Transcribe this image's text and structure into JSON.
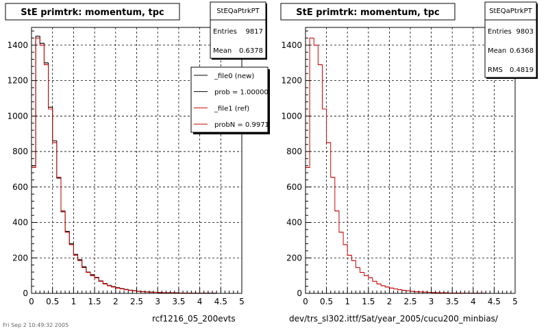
{
  "chart_data": [
    {
      "type": "histogram",
      "title": "StE primtrk: momentum, tpc",
      "xlim": [
        0,
        5
      ],
      "ylim": [
        0,
        1500
      ],
      "x_ticks": [
        "0",
        "0.5",
        "1",
        "1.5",
        "2",
        "2.5",
        "3",
        "3.5",
        "4",
        "4.5",
        "5"
      ],
      "y_ticks": [
        "0",
        "200",
        "400",
        "600",
        "800",
        "1000",
        "1200",
        "1400"
      ],
      "grid": true,
      "bin_width": 0.1,
      "stats": {
        "name": "StEQaPtrkPT",
        "rows": [
          {
            "label": "Entries",
            "value": "9817"
          },
          {
            "label": "Mean",
            "value": "0.6378"
          }
        ]
      },
      "legend": {
        "entries": [
          {
            "label": "_file0 (new)",
            "color": "#000000"
          },
          {
            "label": "prob = 1.000000",
            "color": "#000000"
          },
          {
            "label": "_file1 (ref)",
            "color": "#cc0000"
          },
          {
            "label": "probN = 0.997197",
            "color": "#cc0000"
          }
        ]
      },
      "caption": "rcf1216_05_200evts",
      "series": [
        {
          "name": "_file0 (new)",
          "color": "#000000",
          "values": [
            720,
            1450,
            1410,
            1300,
            1050,
            860,
            650,
            460,
            350,
            280,
            220,
            190,
            150,
            120,
            105,
            90,
            70,
            55,
            45,
            38,
            32,
            27,
            22,
            18,
            15,
            12,
            10,
            8,
            7,
            6,
            5,
            4,
            4,
            3,
            3,
            2,
            2,
            2,
            1,
            1,
            1,
            1,
            1,
            1,
            0,
            0,
            0,
            0,
            0,
            0
          ]
        },
        {
          "name": "_file1 (ref)",
          "color": "#cc0000",
          "values": [
            710,
            1440,
            1400,
            1290,
            1040,
            850,
            655,
            465,
            345,
            275,
            215,
            185,
            145,
            118,
            100,
            88,
            68,
            53,
            43,
            36,
            30,
            25,
            21,
            17,
            14,
            11,
            9,
            8,
            7,
            6,
            5,
            4,
            3,
            3,
            2,
            2,
            2,
            1,
            1,
            1,
            1,
            1,
            1,
            0,
            0,
            0,
            0,
            0,
            0,
            0
          ]
        }
      ]
    },
    {
      "type": "histogram",
      "title": "StE primtrk: momentum, tpc",
      "xlim": [
        0,
        5
      ],
      "ylim": [
        0,
        1500
      ],
      "x_ticks": [
        "0",
        "0.5",
        "1",
        "1.5",
        "2",
        "2.5",
        "3",
        "3.5",
        "4",
        "4.5",
        "5"
      ],
      "y_ticks": [
        "0",
        "200",
        "400",
        "600",
        "800",
        "1000",
        "1200",
        "1400"
      ],
      "grid": true,
      "bin_width": 0.1,
      "stats": {
        "name": "StEQaPtrkPT",
        "rows": [
          {
            "label": "Entries",
            "value": "9803"
          },
          {
            "label": "Mean",
            "value": "0.6368"
          },
          {
            "label": "RMS",
            "value": "0.4819"
          }
        ]
      },
      "caption": "dev/trs_sl302.ittf/Sat/year_2005/cucu200_minbias/",
      "series": [
        {
          "name": "",
          "color": "#cc0000",
          "values": [
            710,
            1440,
            1400,
            1290,
            1040,
            850,
            655,
            465,
            345,
            275,
            215,
            185,
            145,
            118,
            100,
            88,
            68,
            53,
            43,
            36,
            30,
            25,
            21,
            17,
            14,
            11,
            9,
            8,
            7,
            6,
            5,
            4,
            3,
            3,
            2,
            2,
            2,
            1,
            1,
            1,
            1,
            1,
            1,
            0,
            0,
            0,
            0,
            0,
            0,
            0
          ]
        }
      ]
    }
  ],
  "footer_text": "Fri Sep  2 10:49:32 2005"
}
